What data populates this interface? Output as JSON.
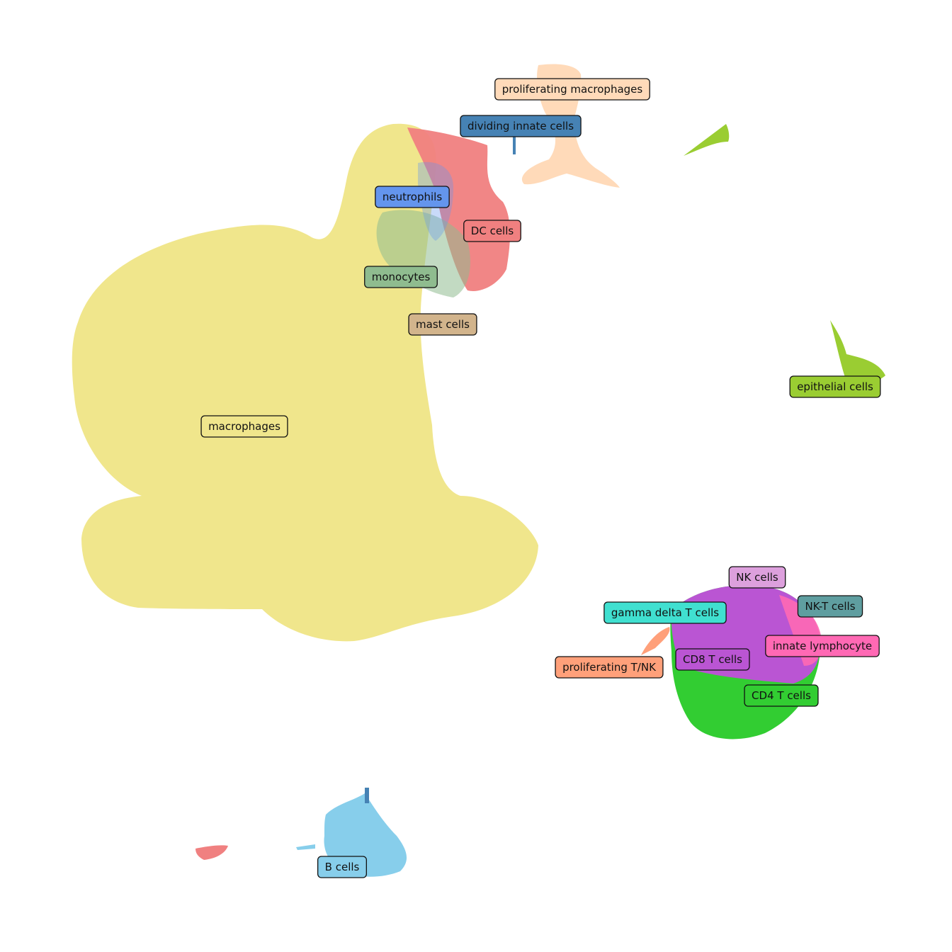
{
  "chart_data": {
    "type": "scatter",
    "title": "",
    "xlabel": "",
    "ylabel": "",
    "axes": "off",
    "grid": false,
    "legend": "none (on-plot cluster labels)",
    "clusters": [
      {
        "name": "proliferating macrophages",
        "color": "#FFDAB9"
      },
      {
        "name": "dividing innate cells",
        "color": "#4682B4"
      },
      {
        "name": "neutrophils",
        "color": "#6495ED"
      },
      {
        "name": "DC cells",
        "color": "#F08080"
      },
      {
        "name": "monocytes",
        "color": "#8FBC8F"
      },
      {
        "name": "mast cells",
        "color": "#D2B48C"
      },
      {
        "name": "macrophages",
        "color": "#F0E68C"
      },
      {
        "name": "epithelial cells",
        "color": "#9ACD32"
      },
      {
        "name": "NK cells",
        "color": "#DDA0DD"
      },
      {
        "name": "NK-T cells",
        "color": "#5F9EA0"
      },
      {
        "name": "gamma delta T cells",
        "color": "#40E0D0"
      },
      {
        "name": "innate lymphocyte",
        "color": "#FF69B4"
      },
      {
        "name": "CD8 T cells",
        "color": "#BA55D3"
      },
      {
        "name": "proliferating T/NK",
        "color": "#FFA07A"
      },
      {
        "name": "CD4 T cells",
        "color": "#32CD32"
      },
      {
        "name": "B cells",
        "color": "#87CEEB"
      }
    ]
  }
}
